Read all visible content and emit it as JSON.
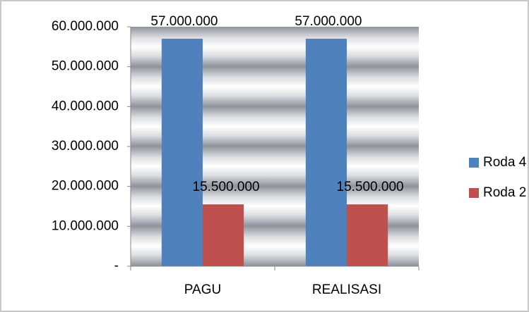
{
  "chart_data": {
    "type": "bar",
    "categories": [
      "PAGU",
      "REALISASI"
    ],
    "series": [
      {
        "name": "Roda 4",
        "color": "#4f81bd",
        "values": [
          57000000,
          57000000
        ],
        "value_labels": [
          "57.000.000",
          "57.000.000"
        ]
      },
      {
        "name": "Roda 2",
        "color": "#c0504d",
        "values": [
          15500000,
          15500000
        ],
        "value_labels": [
          "15.500.000",
          "15.500.000"
        ]
      }
    ],
    "ylim": [
      0,
      60000000
    ],
    "yticks": [
      {
        "value": 0,
        "label": "-"
      },
      {
        "value": 10000000,
        "label": "10.000.000"
      },
      {
        "value": 20000000,
        "label": "20.000.000"
      },
      {
        "value": 30000000,
        "label": "30.000.000"
      },
      {
        "value": 40000000,
        "label": "40.000.000"
      },
      {
        "value": 50000000,
        "label": "50.000.000"
      },
      {
        "value": 60000000,
        "label": "60.000.000"
      }
    ],
    "legend": "right"
  }
}
